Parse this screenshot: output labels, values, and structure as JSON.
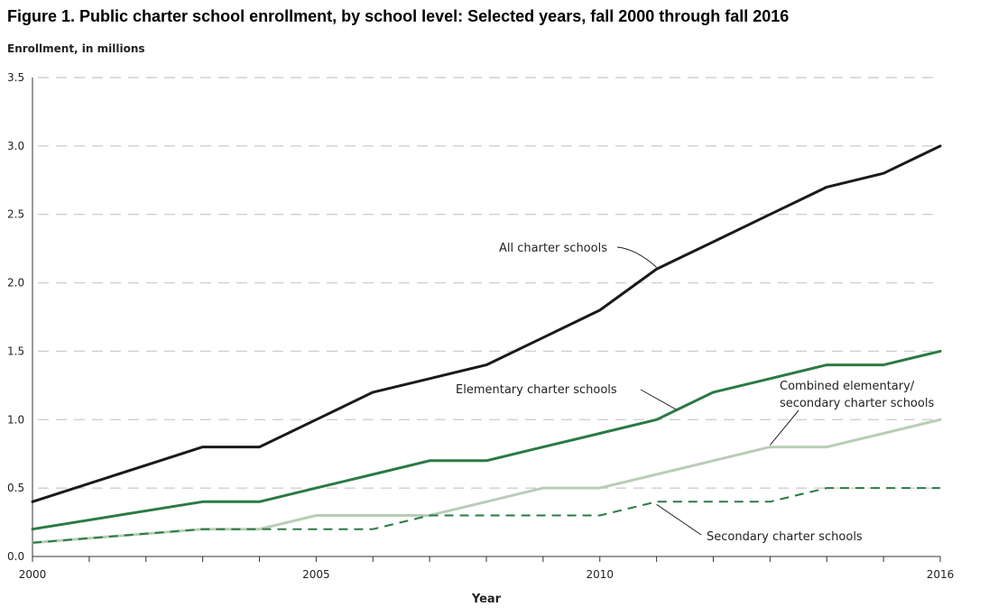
{
  "chart_data": {
    "type": "line",
    "title": "Figure 1. Public charter school enrollment, by school level: Selected years, fall 2000 through fall 2016",
    "ylabel": "Enrollment, in millions",
    "xlabel": "Year",
    "xlim": [
      2000,
      2016
    ],
    "ylim": [
      0,
      3.5
    ],
    "x_ticks": [
      "2000",
      "2005",
      "2010",
      "2016"
    ],
    "y_ticks": [
      "0.0",
      "0.5",
      "1.0",
      "1.5",
      "2.0",
      "2.5",
      "3.0",
      "3.5"
    ],
    "grid": true,
    "x": [
      2000,
      2003,
      2004,
      2005,
      2006,
      2007,
      2008,
      2009,
      2010,
      2011,
      2012,
      2013,
      2014,
      2015,
      2016
    ],
    "series": [
      {
        "name": "All charter schools",
        "color": "#1a1a1a",
        "style": "solid",
        "values": [
          0.4,
          0.8,
          0.8,
          1.0,
          1.2,
          1.3,
          1.4,
          1.6,
          1.8,
          2.1,
          2.3,
          2.5,
          2.7,
          2.8,
          3.0
        ]
      },
      {
        "name": "Elementary charter schools",
        "color": "#2a7a44",
        "style": "solid",
        "values": [
          0.2,
          0.4,
          0.4,
          0.5,
          0.6,
          0.7,
          0.7,
          0.8,
          0.9,
          1.0,
          1.2,
          1.3,
          1.4,
          1.4,
          1.5
        ]
      },
      {
        "name": "Combined elementary/ secondary charter schools",
        "color": "#b9cdb7",
        "style": "solid",
        "values": [
          0.1,
          0.2,
          0.2,
          0.3,
          0.3,
          0.3,
          0.4,
          0.5,
          0.5,
          0.6,
          0.7,
          0.8,
          0.8,
          0.9,
          1.0
        ]
      },
      {
        "name": "Secondary charter schools",
        "color": "#2a7a44",
        "style": "dashed",
        "values": [
          0.1,
          0.2,
          0.2,
          0.2,
          0.2,
          0.3,
          0.3,
          0.3,
          0.3,
          0.4,
          0.4,
          0.4,
          0.5,
          0.5,
          0.5
        ]
      }
    ],
    "annotations": {
      "all": "All charter schools",
      "elementary": "Elementary charter schools",
      "combined_line1": "Combined elementary/",
      "combined_line2": "secondary charter schools",
      "secondary": "Secondary charter schools"
    }
  }
}
